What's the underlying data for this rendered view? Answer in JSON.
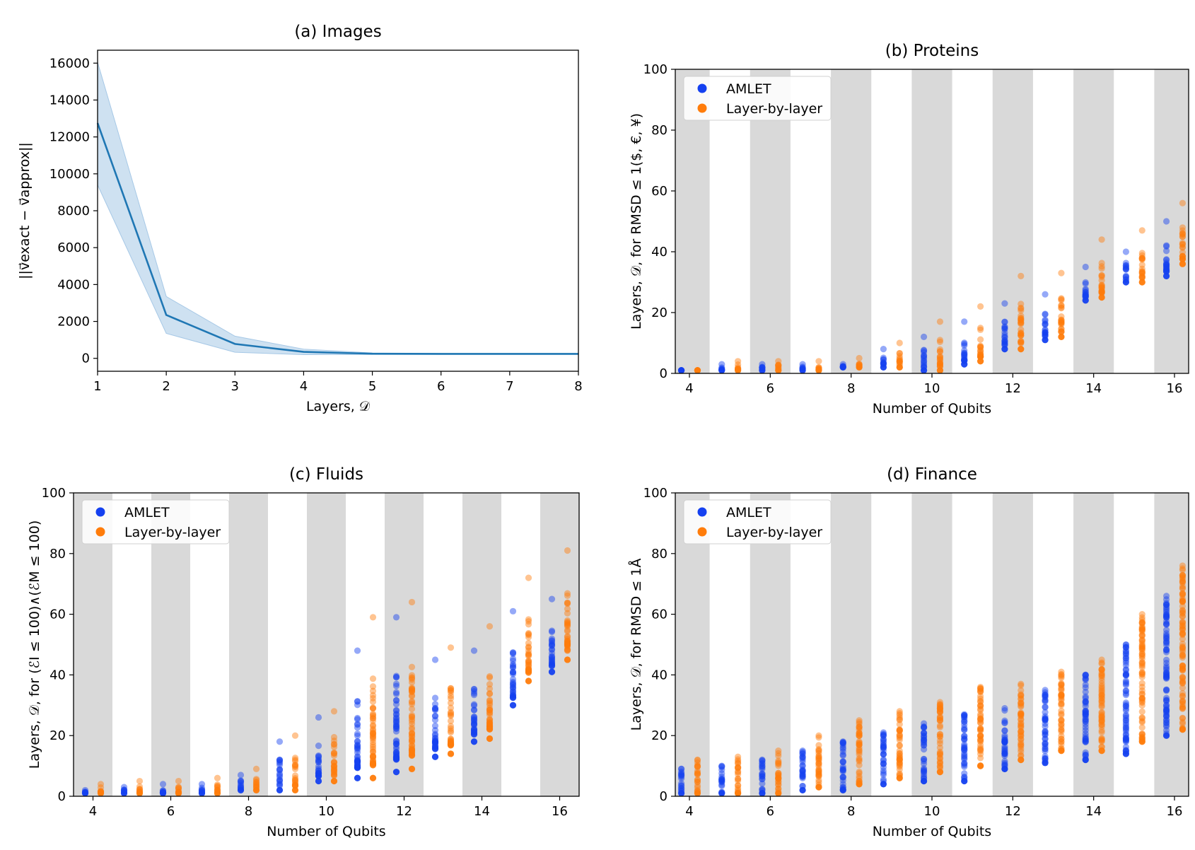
{
  "colors": {
    "amlet": "#1440f0",
    "layer": "#ff7c0a",
    "line": "#1f77b4",
    "band": "#a6c8e6",
    "shade": "#d9d9d9"
  },
  "chart_data": [
    {
      "id": "a",
      "type": "line",
      "title": "(a) Images",
      "xlabel": "Layers, 𝒟",
      "ylabel": "||v⃗exact − v⃗approx||",
      "xlim": [
        1,
        8
      ],
      "ylim": [
        -700,
        16700
      ],
      "xticks": [
        1,
        2,
        3,
        4,
        5,
        6,
        7,
        8
      ],
      "yticks": [
        0,
        2000,
        4000,
        6000,
        8000,
        10000,
        12000,
        14000,
        16000
      ],
      "x": [
        1,
        2,
        3,
        4,
        5,
        6,
        7,
        8
      ],
      "y": [
        12750,
        2350,
        780,
        350,
        250,
        240,
        240,
        240
      ],
      "y_lower": [
        9400,
        1350,
        330,
        200,
        210,
        215,
        215,
        215
      ],
      "y_upper": [
        16050,
        3350,
        1200,
        500,
        290,
        265,
        265,
        265
      ]
    },
    {
      "id": "b",
      "type": "scatter",
      "title": "(b) Proteins",
      "xlabel": "Number of Qubits",
      "ylabel": "Layers, 𝒟, for RMSD ≤ 1($, €, ¥)",
      "xlim": [
        3.65,
        16.35
      ],
      "ylim": [
        0,
        100
      ],
      "xticks": [
        4,
        6,
        8,
        10,
        12,
        14,
        16
      ],
      "yticks": [
        0,
        20,
        40,
        60,
        80,
        100
      ],
      "legend": [
        "AMLET",
        "Layer-by-layer"
      ],
      "legend_loc": "upper-left",
      "series": [
        {
          "name": "AMLET",
          "x": [
            4,
            5,
            6,
            7,
            8,
            9,
            10,
            11,
            12,
            13,
            14,
            15,
            16
          ],
          "min": [
            1,
            1,
            1,
            1,
            2,
            2,
            1,
            3,
            8,
            11,
            24,
            30,
            32
          ],
          "max": [
            1,
            3,
            3,
            3,
            3,
            8,
            12,
            17,
            23,
            26,
            35,
            40,
            50
          ]
        },
        {
          "name": "Layer-by-layer",
          "x": [
            4,
            5,
            6,
            7,
            8,
            9,
            10,
            11,
            12,
            13,
            14,
            15,
            16
          ],
          "min": [
            1,
            1,
            1,
            1,
            2,
            2,
            1,
            4,
            8,
            12,
            25,
            30,
            36
          ],
          "max": [
            1,
            4,
            4,
            4,
            5,
            10,
            17,
            22,
            32,
            33,
            44,
            47,
            56
          ]
        }
      ]
    },
    {
      "id": "c",
      "type": "scatter",
      "title": "(c) Fluids",
      "xlabel": "Number of Qubits",
      "ylabel": "Layers, 𝒟, for (ℰI ≤ 100)∧(ℰM ≤ 100)",
      "xlim": [
        3.5,
        16.5
      ],
      "ylim": [
        0,
        100
      ],
      "xticks": [
        4,
        6,
        8,
        10,
        12,
        14,
        16
      ],
      "yticks": [
        0,
        20,
        40,
        60,
        80,
        100
      ],
      "legend": [
        "AMLET",
        "Layer-by-layer"
      ],
      "legend_loc": "upper-left",
      "series": [
        {
          "name": "AMLET",
          "x": [
            4,
            5,
            6,
            7,
            8,
            9,
            10,
            11,
            12,
            13,
            14,
            15,
            16
          ],
          "min": [
            1,
            1,
            1,
            1,
            2,
            2,
            5,
            6,
            8,
            13,
            18,
            30,
            41
          ],
          "max": [
            2,
            3,
            4,
            4,
            7,
            18,
            26,
            48,
            59,
            45,
            48,
            61,
            65
          ]
        },
        {
          "name": "Layer-by-layer",
          "x": [
            4,
            5,
            6,
            7,
            8,
            9,
            10,
            11,
            12,
            13,
            14,
            15,
            16
          ],
          "min": [
            1,
            1,
            1,
            1,
            2,
            2,
            5,
            6,
            9,
            14,
            19,
            38,
            45
          ],
          "max": [
            4,
            5,
            5,
            6,
            9,
            20,
            28,
            59,
            64,
            49,
            56,
            72,
            81
          ]
        }
      ]
    },
    {
      "id": "d",
      "type": "scatter",
      "title": "(d) Finance",
      "xlabel": "Number of Qubits",
      "ylabel": "Layers, 𝒟, for RMSD ≤ 1Å",
      "xlim": [
        3.65,
        16.35
      ],
      "ylim": [
        0,
        100
      ],
      "xticks": [
        4,
        6,
        8,
        10,
        12,
        14,
        16
      ],
      "yticks": [
        0,
        20,
        40,
        60,
        80,
        100
      ],
      "legend": [
        "AMLET",
        "Layer-by-layer"
      ],
      "legend_loc": "upper-left",
      "series": [
        {
          "name": "AMLET",
          "x": [
            4,
            5,
            6,
            7,
            8,
            9,
            10,
            11,
            12,
            13,
            14,
            15,
            16
          ],
          "min": [
            1,
            1,
            1,
            2,
            2,
            4,
            5,
            5,
            9,
            11,
            12,
            14,
            20
          ],
          "max": [
            9,
            10,
            12,
            15,
            18,
            21,
            24,
            27,
            29,
            35,
            40,
            50,
            66
          ]
        },
        {
          "name": "Layer-by-layer",
          "x": [
            4,
            5,
            6,
            7,
            8,
            9,
            10,
            11,
            12,
            13,
            14,
            15,
            16
          ],
          "min": [
            1,
            1,
            1,
            3,
            4,
            6,
            8,
            10,
            12,
            15,
            15,
            18,
            22
          ],
          "max": [
            12,
            13,
            15,
            20,
            25,
            28,
            31,
            36,
            37,
            41,
            45,
            60,
            76
          ]
        }
      ]
    }
  ]
}
